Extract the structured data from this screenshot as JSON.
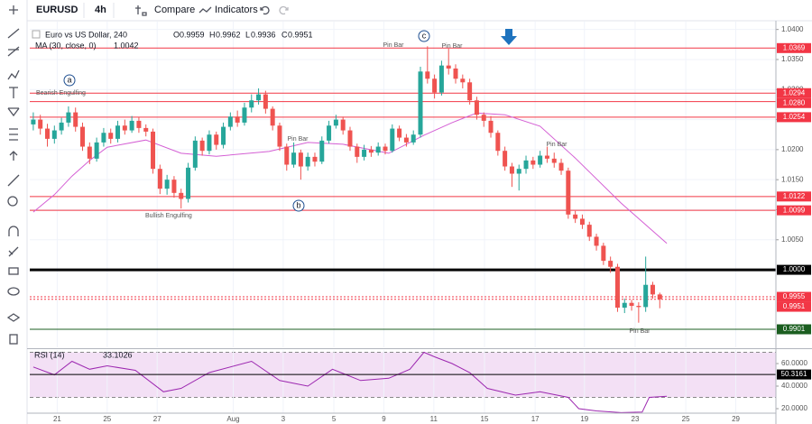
{
  "toolbar": {
    "symbol": "EURUSD",
    "interval": "4h",
    "compare": "Compare",
    "indicators": "Indicators"
  },
  "chart_data": {
    "type": "candlestick",
    "title": "Euro vs US Dollar, 240",
    "ohlc_legend": [
      {
        "key": "O",
        "value": 0.9959
      },
      {
        "key": "H",
        "value": 0.9962
      },
      {
        "key": "L",
        "value": 0.9936
      },
      {
        "key": "C",
        "value": 0.9951
      }
    ],
    "open": [
      1.0242,
      1.025,
      1.0235,
      1.0218,
      1.0232,
      1.0245,
      1.0262,
      1.0238,
      1.0205,
      1.0185,
      1.0212,
      1.0228,
      1.0218,
      1.024,
      1.0232,
      1.0248,
      1.0236,
      1.023,
      1.0168,
      1.0135,
      1.015,
      1.0128,
      1.0118,
      1.017,
      1.0215,
      1.0198,
      1.0225,
      1.0208,
      1.0238,
      1.0255,
      1.0245,
      1.027,
      1.0282,
      1.0292,
      1.0268,
      1.024,
      1.0205,
      1.0175,
      1.0195,
      1.0172,
      1.0188,
      1.018,
      1.0215,
      1.024,
      1.025,
      1.0232,
      1.0205,
      1.0188,
      1.02,
      1.0195,
      1.0205,
      1.0198,
      1.0235,
      1.022,
      1.0212,
      1.0225,
      1.033,
      1.0318,
      1.0295,
      1.034,
      1.0335,
      1.0318,
      1.0312,
      1.0282,
      1.0258,
      1.0248,
      1.0228,
      1.0198,
      1.0172,
      1.016,
      1.0168,
      1.0182,
      1.0175,
      1.019,
      1.0185,
      1.0178,
      1.0165,
      1.0092,
      1.0085,
      1.0075,
      1.0055,
      1.004,
      1.0015,
      1.0005,
      0.9937,
      0.9945,
      0.994,
      0.9938,
      0.9975,
      0.9959
    ],
    "high": [
      1.0262,
      1.0258,
      1.0243,
      1.024,
      1.0253,
      1.0272,
      1.027,
      1.0245,
      1.0212,
      1.022,
      1.0236,
      1.0235,
      1.0248,
      1.025,
      1.0256,
      1.0254,
      1.0242,
      1.0235,
      1.0175,
      1.0158,
      1.0156,
      1.0135,
      1.0178,
      1.0222,
      1.022,
      1.0232,
      1.023,
      1.0245,
      1.0262,
      1.0265,
      1.0278,
      1.0292,
      1.0302,
      1.0298,
      1.0272,
      1.0245,
      1.021,
      1.0212,
      1.02,
      1.0195,
      1.0195,
      1.0222,
      1.0248,
      1.0258,
      1.0255,
      1.0238,
      1.021,
      1.0208,
      1.0206,
      1.0212,
      1.021,
      1.0242,
      1.024,
      1.0226,
      1.0232,
      1.0338,
      1.0372,
      1.0325,
      1.0348,
      1.0368,
      1.0342,
      1.0325,
      1.0318,
      1.0288,
      1.0262,
      1.0256,
      1.0232,
      1.0205,
      1.0178,
      1.0175,
      1.019,
      1.0188,
      1.0198,
      1.0205,
      1.0195,
      1.0185,
      1.017,
      1.0098,
      1.0092,
      1.008,
      1.006,
      1.0045,
      1.0022,
      1.001,
      0.9952,
      0.995,
      0.9946,
      1.0022,
      0.998,
      0.9962
    ],
    "low": [
      1.0232,
      1.0225,
      1.0205,
      1.021,
      1.0225,
      1.0238,
      1.023,
      1.0198,
      1.0176,
      1.018,
      1.0205,
      1.021,
      1.0212,
      1.0225,
      1.0228,
      1.0228,
      1.0222,
      1.016,
      1.0126,
      1.0125,
      1.012,
      1.0102,
      1.0112,
      1.0165,
      1.019,
      1.0192,
      1.02,
      1.0202,
      1.0232,
      1.0238,
      1.024,
      1.0262,
      1.0275,
      1.026,
      1.0232,
      1.0198,
      1.0165,
      1.017,
      1.015,
      1.0165,
      1.0172,
      1.0176,
      1.021,
      1.0235,
      1.0225,
      1.0198,
      1.0178,
      1.0182,
      1.0188,
      1.019,
      1.0192,
      1.0195,
      1.0214,
      1.0205,
      1.0208,
      1.022,
      1.031,
      1.0285,
      1.029,
      1.0325,
      1.031,
      1.0302,
      1.0275,
      1.025,
      1.0238,
      1.022,
      1.019,
      1.0165,
      1.0138,
      1.0132,
      1.016,
      1.0168,
      1.017,
      1.0178,
      1.017,
      1.0158,
      1.0085,
      1.0078,
      1.0068,
      1.0048,
      1.0032,
      1.0008,
      0.9995,
      0.993,
      0.9928,
      0.9932,
      0.9912,
      0.993,
      0.9952,
      0.9936
    ],
    "close": [
      1.025,
      1.0235,
      1.0218,
      1.0232,
      1.0245,
      1.0262,
      1.0238,
      1.0205,
      1.0185,
      1.0212,
      1.0228,
      1.0218,
      1.024,
      1.0232,
      1.0248,
      1.0236,
      1.023,
      1.0168,
      1.0135,
      1.015,
      1.0128,
      1.0118,
      1.017,
      1.0215,
      1.0198,
      1.0225,
      1.0208,
      1.0238,
      1.0255,
      1.0245,
      1.027,
      1.0282,
      1.0292,
      1.0268,
      1.024,
      1.0205,
      1.0175,
      1.0195,
      1.0172,
      1.0188,
      1.018,
      1.0215,
      1.024,
      1.025,
      1.0232,
      1.0205,
      1.0188,
      1.02,
      1.0195,
      1.0205,
      1.0198,
      1.0235,
      1.022,
      1.0212,
      1.0225,
      1.033,
      1.0318,
      1.0295,
      1.034,
      1.0335,
      1.0318,
      1.0312,
      1.0282,
      1.0258,
      1.0248,
      1.0228,
      1.0198,
      1.0172,
      1.016,
      1.0168,
      1.0182,
      1.0175,
      1.019,
      1.0185,
      1.0178,
      1.0165,
      1.0092,
      1.0085,
      1.0075,
      1.0055,
      1.004,
      1.0015,
      1.0005,
      0.9937,
      0.9945,
      0.994,
      0.9938,
      0.9975,
      0.9959,
      0.9951
    ],
    "up_color": "#26a69a",
    "down_color": "#ef5350",
    "xlim": [
      -0.5,
      105.5
    ],
    "xticks": [
      {
        "value": 3.4,
        "label": "21"
      },
      {
        "value": 10.5,
        "label": "25"
      },
      {
        "value": 17.6,
        "label": "27"
      },
      {
        "value": 28.4,
        "label": "Aug"
      },
      {
        "value": 35.5,
        "label": "3"
      },
      {
        "value": 42.7,
        "label": "5"
      },
      {
        "value": 49.8,
        "label": "9"
      },
      {
        "value": 56.9,
        "label": "11"
      },
      {
        "value": 64.1,
        "label": "15"
      },
      {
        "value": 71.3,
        "label": "17"
      },
      {
        "value": 78.3,
        "label": "19"
      },
      {
        "value": 85.5,
        "label": "23"
      },
      {
        "value": 92.7,
        "label": "25"
      },
      {
        "value": 99.8,
        "label": "29"
      }
    ],
    "ylim": [
      0.9871,
      1.0407
    ],
    "yticks": [
      {
        "value": 1.04,
        "label": "1.0400"
      },
      {
        "value": 1.035,
        "label": "1.0350"
      },
      {
        "value": 1.03,
        "label": "1.0300"
      },
      {
        "value": 1.025,
        "label": "1.0250"
      },
      {
        "value": 1.02,
        "label": "1.0200"
      },
      {
        "value": 1.015,
        "label": "1.0150"
      },
      {
        "value": 1.01,
        "label": "1.0100"
      },
      {
        "value": 1.005,
        "label": "1.0050"
      }
    ],
    "grid": true,
    "levels": [
      {
        "value": 1.0369,
        "color": "#f23645",
        "width": 1,
        "style": "solid"
      },
      {
        "value": 1.0294,
        "color": "#f23645",
        "width": 1,
        "style": "solid"
      },
      {
        "value": 1.028,
        "label": "1.0280",
        "color": "#f23645",
        "width": 1,
        "style": "solid"
      },
      {
        "value": 1.0254,
        "color": "#f23645",
        "width": 1,
        "style": "solid"
      },
      {
        "value": 1.0122,
        "color": "#f23645",
        "width": 1,
        "style": "solid"
      },
      {
        "value": 1.0099,
        "color": "#f23645",
        "width": 1,
        "style": "solid"
      },
      {
        "value": 1,
        "label": "1.0000",
        "color": "#000000",
        "width": 3,
        "style": "solid"
      },
      {
        "value": 0.9955,
        "color": "#f23645",
        "width": 1,
        "style": "dotted"
      },
      {
        "value": 0.9951,
        "color": "#f23645",
        "width": 1,
        "style": "dotted"
      },
      {
        "value": 0.9901,
        "color": "#1b5e20",
        "width": 1,
        "style": "solid"
      }
    ],
    "ma": {
      "name": "MA (30, close, 0)",
      "last": 1.0042,
      "color": "#d45fd4",
      "x": [
        0,
        3,
        5.5,
        8,
        10.5,
        16,
        21,
        26,
        33.5,
        39,
        44,
        50.5,
        55.5,
        59.5,
        63,
        67,
        72,
        77,
        83.5,
        90
      ],
      "values": [
        1.0096,
        1.0125,
        1.0156,
        1.0182,
        1.0204,
        1.0216,
        1.0194,
        1.0189,
        1.0197,
        1.0212,
        1.0209,
        1.0194,
        1.0224,
        1.0245,
        1.0261,
        1.0258,
        1.0239,
        1.0186,
        1.0111,
        1.0044
      ]
    },
    "rsi": {
      "name": "RSI (14)",
      "last": 33.1026,
      "color": "#9c27b0",
      "band_color": "#f3e0f5",
      "x": [
        0,
        3,
        5.5,
        8,
        10.5,
        14.5,
        18.5,
        21,
        25,
        31,
        35,
        39,
        42.5,
        46.5,
        50.5,
        53.5,
        55.5,
        57,
        59.5,
        62,
        64.5,
        68.5,
        72,
        76,
        77.5,
        80,
        83.5,
        86.5,
        87.5,
        90
      ],
      "values": [
        57,
        50,
        62,
        55,
        58,
        54,
        35,
        38,
        52,
        62,
        45,
        40,
        55,
        45,
        47,
        55,
        70,
        66,
        60,
        52,
        38,
        32,
        35,
        30,
        20,
        18,
        16.5,
        17,
        30,
        31
      ],
      "ylim": [
        16,
        72
      ],
      "yticks": [
        {
          "value": 60,
          "label": "60.0000"
        },
        {
          "value": 40,
          "label": "40.0000"
        },
        {
          "value": 20,
          "label": "20.0000"
        }
      ],
      "band": [
        30,
        70
      ],
      "level": 50.3161
    },
    "annotations": {
      "bearish": "Bearish Engulfing",
      "bullish": "Bullish Engulfing",
      "pin_bar": "Pin Bar",
      "waves": [
        "a",
        "b",
        "c"
      ]
    }
  }
}
